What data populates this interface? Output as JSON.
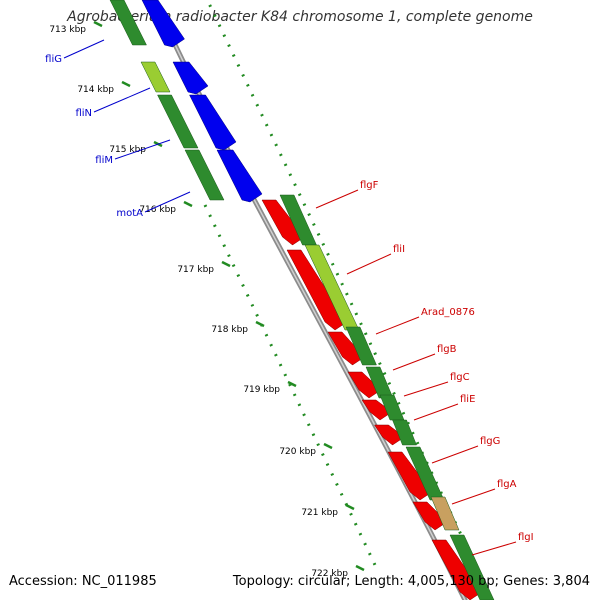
{
  "title": "Agrobacterium radiobacter K84 chromosome 1, complete genome",
  "footer": {
    "accession": "Accession: NC_011985",
    "stats": "Topology: circular; Length: 4,005,130 bp; Genes: 3,804"
  },
  "colors": {
    "backbone": "#8c8c8c",
    "cds": "#2e8b2e",
    "forward_feature": "#0000ee",
    "reverse_feature": "#ee0000",
    "highlight_feature": "#9acd32",
    "other_feature": "#c8a060",
    "dotted_ring": "#228b22",
    "forward_label": "#0000cc",
    "reverse_label": "#cc0000"
  },
  "scale": {
    "ticks": [
      {
        "label": "713 kbp"
      },
      {
        "label": "714 kbp"
      },
      {
        "label": "715 kbp"
      },
      {
        "label": "716 kbp"
      },
      {
        "label": "717 kbp"
      },
      {
        "label": "718 kbp"
      },
      {
        "label": "719 kbp"
      },
      {
        "label": "720 kbp"
      },
      {
        "label": "721 kbp"
      },
      {
        "label": "722 kbp"
      }
    ]
  },
  "forward_genes": [
    {
      "name": "fliG"
    },
    {
      "name": "fliN"
    },
    {
      "name": "fliM"
    },
    {
      "name": "motA"
    }
  ],
  "reverse_genes": [
    {
      "name": "flgF"
    },
    {
      "name": "fliI"
    },
    {
      "name": "Arad_0876"
    },
    {
      "name": "flgB"
    },
    {
      "name": "flgC"
    },
    {
      "name": "fliE"
    },
    {
      "name": "flgG"
    },
    {
      "name": "flgA"
    },
    {
      "name": "flgI"
    }
  ]
}
